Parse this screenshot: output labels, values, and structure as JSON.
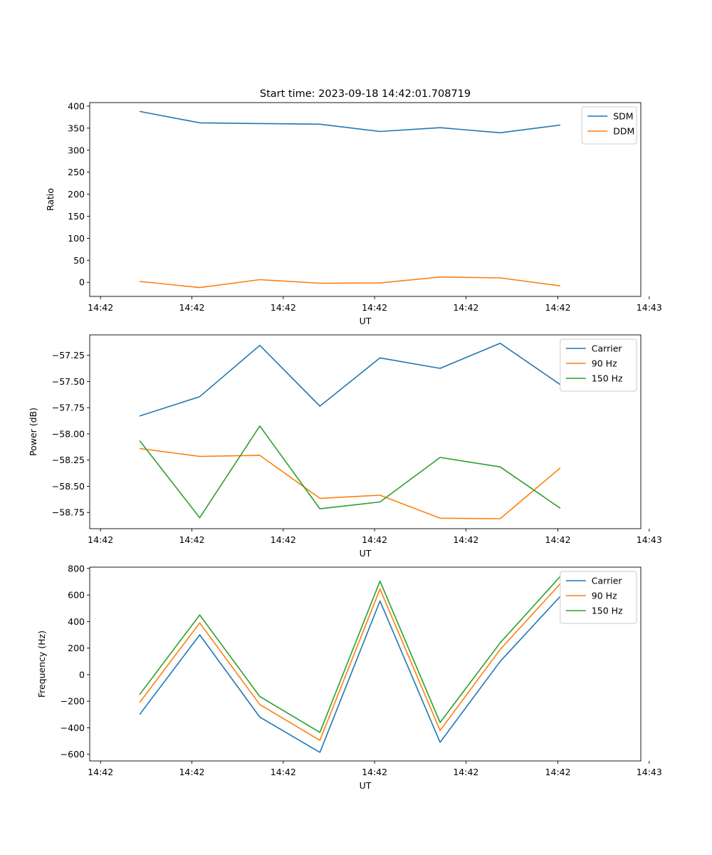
{
  "figure_title": "Start time: 2023-09-18 14:42:01.708719",
  "chart_data": [
    {
      "type": "line",
      "title": "Start time: 2023-09-18 14:42:01.708719",
      "xlabel": "UT",
      "ylabel": "Ratio",
      "x": [
        1,
        2,
        3,
        4,
        5,
        6,
        7,
        8
      ],
      "xlim": [
        0.17,
        9.34
      ],
      "xticks": [
        0.35,
        1.87,
        3.39,
        4.91,
        6.43,
        7.96,
        9.48
      ],
      "xtick_labels": [
        "14:42",
        "14:42",
        "14:42",
        "14:42",
        "14:42",
        "14:42",
        "14:43"
      ],
      "ylim": [
        -32,
        408
      ],
      "yticks": [
        0,
        50,
        100,
        150,
        200,
        250,
        300,
        350,
        400
      ],
      "ytick_labels": [
        "0",
        "50",
        "100",
        "150",
        "200",
        "250",
        "300",
        "350",
        "400"
      ],
      "legend_position": "upper-right",
      "series": [
        {
          "name": "SDM",
          "color": "#1f77b4",
          "values": [
            388,
            362,
            360.5,
            359,
            342.5,
            351,
            339.5,
            357
          ]
        },
        {
          "name": "DDM",
          "color": "#ff7f0e",
          "values": [
            2,
            -12,
            6,
            -2,
            -1.5,
            12,
            10,
            -8
          ]
        }
      ]
    },
    {
      "type": "line",
      "title": "",
      "xlabel": "UT",
      "ylabel": "Power (dB)",
      "x": [
        1,
        2,
        3,
        4,
        5,
        6,
        7,
        8
      ],
      "xlim": [
        0.17,
        9.34
      ],
      "xticks": [
        0.35,
        1.87,
        3.39,
        4.91,
        6.43,
        7.96,
        9.48
      ],
      "xtick_labels": [
        "14:42",
        "14:42",
        "14:42",
        "14:42",
        "14:42",
        "14:42",
        "14:43"
      ],
      "ylim": [
        -58.905,
        -57.055
      ],
      "yticks": [
        -58.75,
        -58.5,
        -58.25,
        -58.0,
        -57.75,
        -57.5,
        -57.25
      ],
      "ytick_labels": [
        "−58.75",
        "−58.50",
        "−58.25",
        "−58.00",
        "−57.75",
        "−57.50",
        "−57.25"
      ],
      "legend_position": "upper-right",
      "series": [
        {
          "name": "Carrier",
          "color": "#1f77b4",
          "values": [
            -57.83,
            -57.645,
            -57.155,
            -57.735,
            -57.275,
            -57.375,
            -57.135,
            -57.53
          ]
        },
        {
          "name": "90 Hz",
          "color": "#ff7f0e",
          "values": [
            -58.14,
            -58.215,
            -58.205,
            -58.615,
            -58.585,
            -58.805,
            -58.81,
            -58.325
          ]
        },
        {
          "name": "150 Hz",
          "color": "#2ca02c",
          "values": [
            -58.065,
            -58.8,
            -57.925,
            -58.715,
            -58.65,
            -58.225,
            -58.315,
            -58.71
          ]
        }
      ]
    },
    {
      "type": "line",
      "title": "",
      "xlabel": "UT",
      "ylabel": "Frequency (Hz)",
      "x": [
        1,
        2,
        3,
        4,
        5,
        6,
        7,
        8
      ],
      "xlim": [
        0.17,
        9.34
      ],
      "xticks": [
        0.35,
        1.87,
        3.39,
        4.91,
        6.43,
        7.96,
        9.48
      ],
      "xtick_labels": [
        "14:42",
        "14:42",
        "14:42",
        "14:42",
        "14:42",
        "14:42",
        "14:43"
      ],
      "ylim": [
        -650,
        810
      ],
      "yticks": [
        -600,
        -400,
        -200,
        0,
        200,
        400,
        600,
        800
      ],
      "ytick_labels": [
        "−600",
        "−400",
        "−200",
        "0",
        "200",
        "400",
        "600",
        "800"
      ],
      "legend_position": "upper-right",
      "series": [
        {
          "name": "Carrier",
          "color": "#1f77b4",
          "values": [
            -300,
            300,
            -320,
            -585,
            555,
            -510,
            100,
            590
          ]
        },
        {
          "name": "90 Hz",
          "color": "#ff7f0e",
          "values": [
            -210,
            390,
            -225,
            -495,
            645,
            -420,
            190,
            685
          ]
        },
        {
          "name": "150 Hz",
          "color": "#2ca02c",
          "values": [
            -150,
            450,
            -165,
            -435,
            705,
            -360,
            240,
            740
          ]
        }
      ]
    }
  ]
}
